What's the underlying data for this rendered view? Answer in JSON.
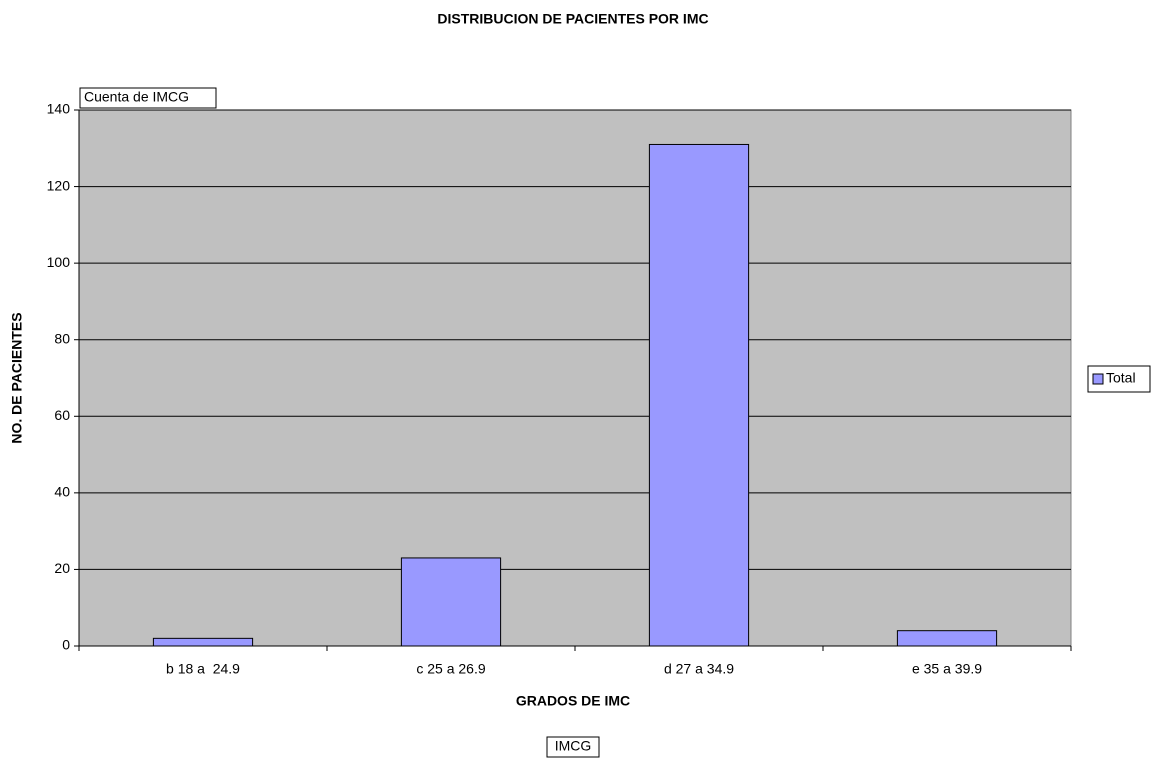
{
  "chart_data": {
    "type": "bar",
    "title": "DISTRIBUCION DE PACIENTES POR IMC",
    "data_field": "Cuenta de IMCG",
    "category_field": "IMCG",
    "x_label": "GRADOS DE IMC",
    "y_label": "NO. DE PACIENTES",
    "categories": [
      "b 18 a  24.9",
      "c 25 a 26.9",
      "d 27 a 34.9",
      "e 35 a 39.9"
    ],
    "series": [
      {
        "name": "Total",
        "color": "#9999ff",
        "values": [
          2,
          23,
          131,
          4
        ]
      }
    ],
    "ylim": [
      0,
      140
    ],
    "yticks": [
      0,
      20,
      40,
      60,
      80,
      100,
      120,
      140
    ],
    "grid": true,
    "legend": "right"
  }
}
